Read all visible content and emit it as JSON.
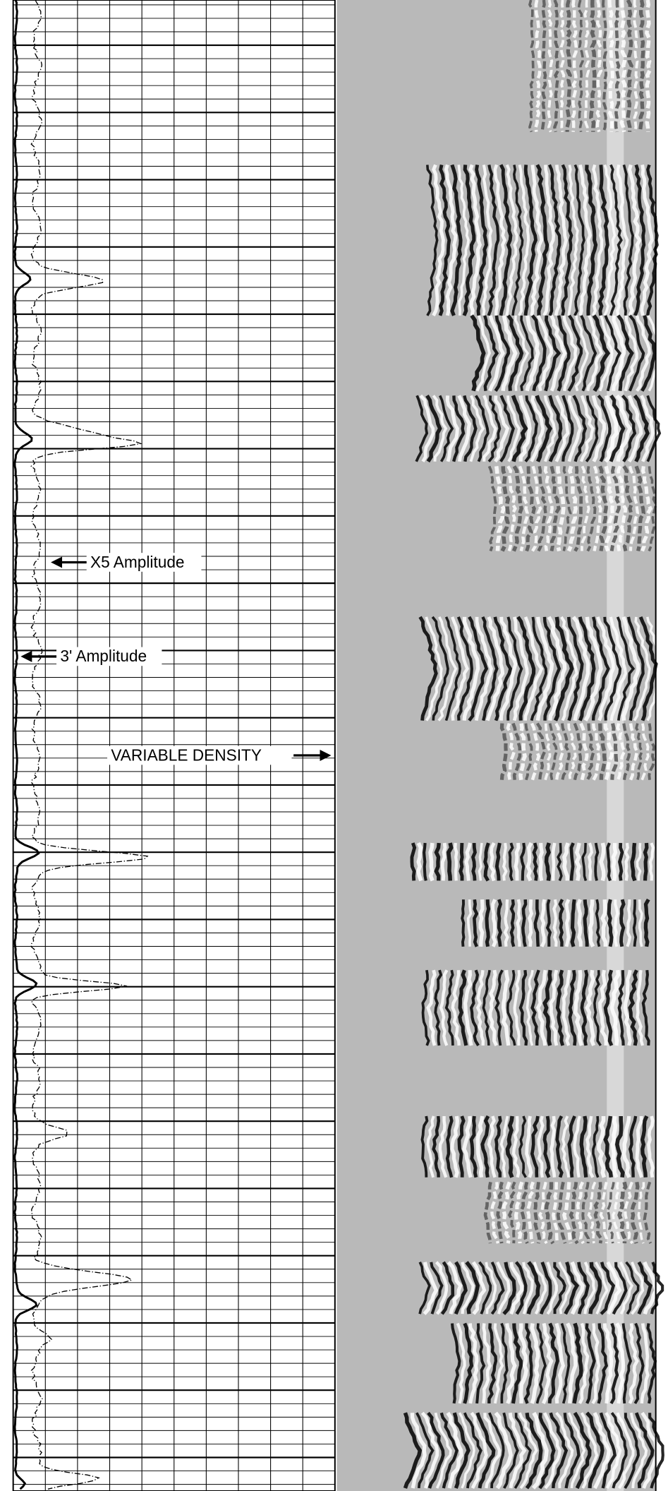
{
  "annotations": {
    "x5_amplitude": "X5 Amplitude",
    "three_ft_amplitude": "3' Amplitude",
    "variable_density": "VARIABLE DENSITY"
  }
}
